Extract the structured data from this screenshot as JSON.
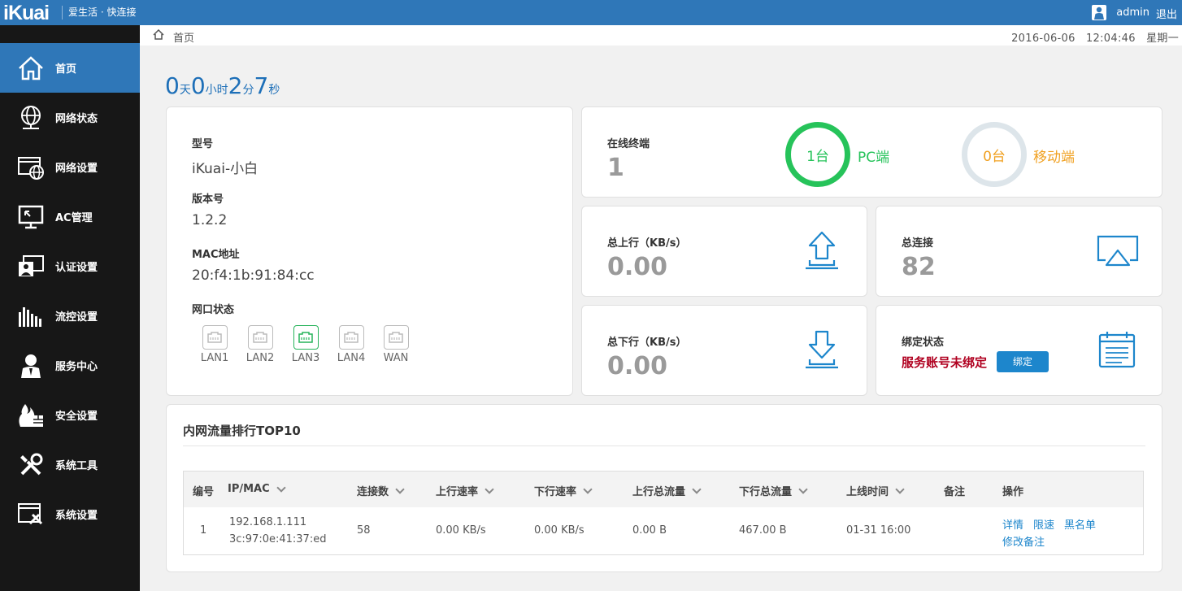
{
  "topbar": {
    "logo": "iKuai",
    "slogan": "爱生活 · 快连接",
    "user": "admin",
    "logout": "退出"
  },
  "sidebar": {
    "items": [
      {
        "label": "首页",
        "icon": "home-icon"
      },
      {
        "label": "网络状态",
        "icon": "globe-icon"
      },
      {
        "label": "网络设置",
        "icon": "network-settings-icon"
      },
      {
        "label": "AC管理",
        "icon": "monitor-icon"
      },
      {
        "label": "认证设置",
        "icon": "auth-icon"
      },
      {
        "label": "流控设置",
        "icon": "bars-icon"
      },
      {
        "label": "服务中心",
        "icon": "service-icon"
      },
      {
        "label": "安全设置",
        "icon": "firewall-icon"
      },
      {
        "label": "系统工具",
        "icon": "tools-icon"
      },
      {
        "label": "系统设置",
        "icon": "system-settings-icon"
      }
    ]
  },
  "breadcrumb": {
    "home": "首页",
    "date": "2016-06-06",
    "time": "12:04:46",
    "weekday": "星期一"
  },
  "uptime": {
    "days": "0",
    "days_unit": "天",
    "hours": "0",
    "hours_unit": "小时",
    "minutes": "2",
    "minutes_unit": "分",
    "seconds": "7",
    "seconds_unit": "秒"
  },
  "device": {
    "model_label": "型号",
    "model": "iKuai-小白",
    "version_label": "版本号",
    "version": "1.2.2",
    "mac_label": "MAC地址",
    "mac": "20:f4:1b:91:84:cc",
    "ports_label": "网口状态",
    "ports": [
      {
        "name": "LAN1",
        "active": false
      },
      {
        "name": "LAN2",
        "active": false
      },
      {
        "name": "LAN3",
        "active": true
      },
      {
        "name": "LAN4",
        "active": false
      },
      {
        "name": "WAN",
        "active": false
      }
    ]
  },
  "terminals": {
    "label": "在线终端",
    "value": "1",
    "pc_count": "1台",
    "pc_label": "PC端",
    "mobile_count": "0台",
    "mobile_label": "移动端"
  },
  "upload": {
    "label": "总上行（KB/s）",
    "value": "0.00"
  },
  "download": {
    "label": "总下行（KB/s）",
    "value": "0.00"
  },
  "connections": {
    "label": "总连接",
    "value": "82"
  },
  "binding": {
    "label": "绑定状态",
    "status": "服务账号未绑定",
    "button": "绑定"
  },
  "ranking": {
    "title": "内网流量排行TOP10",
    "columns": [
      "编号",
      "IP/MAC",
      "连接数",
      "上行速率",
      "下行速率",
      "上行总流量",
      "下行总流量",
      "上线时间",
      "备注",
      "操作"
    ],
    "rows": [
      {
        "no": "1",
        "ip": "192.168.1.111",
        "mac": "3c:97:0e:41:37:ed",
        "conns": "58",
        "up_rate": "0.00 KB/s",
        "down_rate": "0.00 KB/s",
        "up_total": "0.00 B",
        "down_total": "467.00 B",
        "online": "01-31 16:00",
        "note": "",
        "actions": [
          "详情",
          "限速",
          "黑名单",
          "修改备注"
        ]
      }
    ]
  },
  "colors": {
    "brand": "#2f77b8",
    "pc": "#26c35a",
    "mobile": "#f0a020",
    "warning": "#b00020",
    "muted_ring": "#dde5ea"
  }
}
